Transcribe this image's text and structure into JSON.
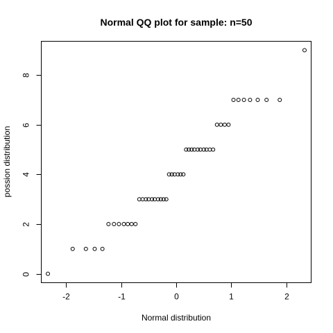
{
  "chart_data": {
    "type": "scatter",
    "title": "Normal QQ plot for sample: n=50",
    "xlabel": "Normal distribution",
    "ylabel": "possion distribution",
    "xlim": [
      -2.45,
      2.45
    ],
    "ylim": [
      -0.36,
      9.36
    ],
    "xticks": [
      -2,
      -1,
      0,
      1,
      2
    ],
    "yticks": [
      0,
      2,
      4,
      6,
      8
    ],
    "grid": false,
    "points": [
      {
        "x": -2.33,
        "y": 0
      },
      {
        "x": -1.88,
        "y": 1
      },
      {
        "x": -1.64,
        "y": 1
      },
      {
        "x": -1.48,
        "y": 1
      },
      {
        "x": -1.34,
        "y": 1
      },
      {
        "x": -1.23,
        "y": 2
      },
      {
        "x": -1.13,
        "y": 2
      },
      {
        "x": -1.04,
        "y": 2
      },
      {
        "x": -0.95,
        "y": 2
      },
      {
        "x": -0.88,
        "y": 2
      },
      {
        "x": -0.81,
        "y": 2
      },
      {
        "x": -0.74,
        "y": 2
      },
      {
        "x": -0.67,
        "y": 3
      },
      {
        "x": -0.61,
        "y": 3
      },
      {
        "x": -0.55,
        "y": 3
      },
      {
        "x": -0.5,
        "y": 3
      },
      {
        "x": -0.44,
        "y": 3
      },
      {
        "x": -0.39,
        "y": 3
      },
      {
        "x": -0.33,
        "y": 3
      },
      {
        "x": -0.28,
        "y": 3
      },
      {
        "x": -0.23,
        "y": 3
      },
      {
        "x": -0.18,
        "y": 3
      },
      {
        "x": -0.13,
        "y": 4
      },
      {
        "x": -0.08,
        "y": 4
      },
      {
        "x": -0.03,
        "y": 4
      },
      {
        "x": 0.03,
        "y": 4
      },
      {
        "x": 0.08,
        "y": 4
      },
      {
        "x": 0.13,
        "y": 4
      },
      {
        "x": 0.18,
        "y": 5
      },
      {
        "x": 0.23,
        "y": 5
      },
      {
        "x": 0.28,
        "y": 5
      },
      {
        "x": 0.33,
        "y": 5
      },
      {
        "x": 0.39,
        "y": 5
      },
      {
        "x": 0.44,
        "y": 5
      },
      {
        "x": 0.5,
        "y": 5
      },
      {
        "x": 0.55,
        "y": 5
      },
      {
        "x": 0.61,
        "y": 5
      },
      {
        "x": 0.67,
        "y": 5
      },
      {
        "x": 0.74,
        "y": 6
      },
      {
        "x": 0.81,
        "y": 6
      },
      {
        "x": 0.88,
        "y": 6
      },
      {
        "x": 0.95,
        "y": 6
      },
      {
        "x": 1.04,
        "y": 7
      },
      {
        "x": 1.13,
        "y": 7
      },
      {
        "x": 1.23,
        "y": 7
      },
      {
        "x": 1.34,
        "y": 7
      },
      {
        "x": 1.48,
        "y": 7
      },
      {
        "x": 1.64,
        "y": 7
      },
      {
        "x": 1.88,
        "y": 7
      },
      {
        "x": 2.33,
        "y": 9
      }
    ]
  }
}
